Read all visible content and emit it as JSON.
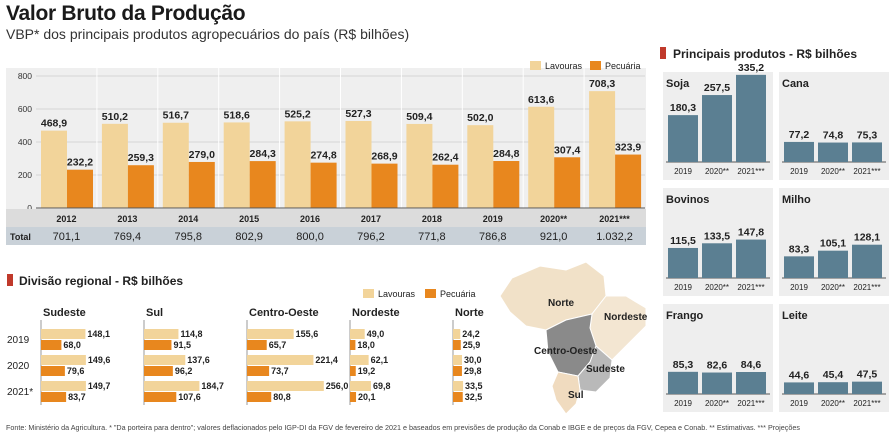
{
  "header": {
    "title": "Valor Bruto da Produção",
    "subtitle": "VBP* dos principais produtos agropecuários do país (R$ bilhões)"
  },
  "footer": {
    "text": "Fonte: Ministério da Agricultura. * \"Da porteira para dentro\"; valores deflacionados pelo IGP-DI da FGV de fevereiro de 2021 e baseados em previsões de produção da Conab e IBGE e de preços da FGV, Cepea e Conab. ** Estimativas. *** Projeções"
  },
  "colors": {
    "lavouras": "#f2d49a",
    "pecuaria": "#e8871e",
    "product_bar": "#5b7f92",
    "panel_bg": "#eeeeee",
    "total_row": "#c9d1d8",
    "section_marker": "#c0392b"
  },
  "chart_data": [
    {
      "type": "bar",
      "id": "main",
      "categories": [
        "2012",
        "2013",
        "2014",
        "2015",
        "2016",
        "2017",
        "2018",
        "2019",
        "2020**",
        "2021***"
      ],
      "ylim": [
        0,
        800
      ],
      "yticks": [
        "0",
        "200",
        "400",
        "600",
        "800"
      ],
      "series": [
        {
          "name": "Lavouras",
          "values": [
            468.9,
            510.2,
            516.7,
            518.6,
            525.2,
            527.3,
            509.4,
            502.0,
            613.6,
            708.3
          ],
          "labels": [
            "468,9",
            "510,2",
            "516,7",
            "518,6",
            "525,2",
            "527,3",
            "509,4",
            "502,0",
            "613,6",
            "708,3"
          ]
        },
        {
          "name": "Pecuária",
          "values": [
            232.2,
            259.3,
            279.0,
            284.3,
            274.8,
            268.9,
            262.4,
            284.8,
            307.4,
            323.9
          ],
          "labels": [
            "232,2",
            "259,3",
            "279,0",
            "284,3",
            "274,8",
            "268,9",
            "262,4",
            "284,8",
            "307,4",
            "323,9"
          ]
        }
      ],
      "total_label": "Total",
      "totals": [
        "701,1",
        "769,4",
        "795,8",
        "802,9",
        "800,0",
        "796,2",
        "771,8",
        "786,8",
        "921,0",
        "1.032,2"
      ],
      "grid": true,
      "legend": "top-right"
    },
    {
      "type": "bar",
      "id": "regional",
      "title": "Divisão regional - R$ bilhões",
      "orientation": "horizontal",
      "years": [
        "2019",
        "2020",
        "2021*"
      ],
      "legend": {
        "lavouras": "Lavouras",
        "pecuaria": "Pecuária"
      },
      "regions": [
        {
          "name": "Sudeste",
          "lavouras": [
            148.1,
            149.6,
            149.7
          ],
          "pecuaria": [
            68.0,
            79.6,
            83.7
          ],
          "lavouras_labels": [
            "148,1",
            "149,6",
            "149,7"
          ],
          "pecuaria_labels": [
            "68,0",
            "79,6",
            "83,7"
          ]
        },
        {
          "name": "Sul",
          "lavouras": [
            114.8,
            137.6,
            184.7
          ],
          "pecuaria": [
            91.5,
            96.2,
            107.6
          ],
          "lavouras_labels": [
            "114,8",
            "137,6",
            "184,7"
          ],
          "pecuaria_labels": [
            "91,5",
            "96,2",
            "107,6"
          ]
        },
        {
          "name": "Centro-Oeste",
          "lavouras": [
            155.6,
            221.4,
            256.0
          ],
          "pecuaria": [
            65.7,
            73.7,
            80.8
          ],
          "lavouras_labels": [
            "155,6",
            "221,4",
            "256,0"
          ],
          "pecuaria_labels": [
            "65,7",
            "73,7",
            "80,8"
          ]
        },
        {
          "name": "Nordeste",
          "lavouras": [
            49.0,
            62.1,
            69.8
          ],
          "pecuaria": [
            18.0,
            19.2,
            20.1
          ],
          "lavouras_labels": [
            "49,0",
            "62,1",
            "69,8"
          ],
          "pecuaria_labels": [
            "18,0",
            "19,2",
            "20,1"
          ]
        },
        {
          "name": "Norte",
          "lavouras": [
            24.2,
            30.0,
            33.5
          ],
          "pecuaria": [
            25.9,
            29.8,
            32.5
          ],
          "lavouras_labels": [
            "24,2",
            "30,0",
            "33,5"
          ],
          "pecuaria_labels": [
            "25,9",
            "29,8",
            "32,5"
          ]
        }
      ],
      "map_labels": [
        "Norte",
        "Nordeste",
        "Centro-Oeste",
        "Sudeste",
        "Sul"
      ]
    },
    {
      "type": "bar",
      "id": "products",
      "title": "Principais produtos - R$ bilhões",
      "categories": [
        "2019",
        "2020**",
        "2021***"
      ],
      "products": [
        {
          "name": "Soja",
          "values": [
            180.3,
            257.5,
            335.2
          ],
          "labels": [
            "180,3",
            "257,5",
            "335,2"
          ]
        },
        {
          "name": "Cana",
          "values": [
            77.2,
            74.8,
            75.3
          ],
          "labels": [
            "77,2",
            "74,8",
            "75,3"
          ]
        },
        {
          "name": "Bovinos",
          "values": [
            115.5,
            133.5,
            147.8
          ],
          "labels": [
            "115,5",
            "133,5",
            "147,8"
          ]
        },
        {
          "name": "Milho",
          "values": [
            83.3,
            105.1,
            128.1
          ],
          "labels": [
            "83,3",
            "105,1",
            "128,1"
          ]
        },
        {
          "name": "Frango",
          "values": [
            85.3,
            82.6,
            84.6
          ],
          "labels": [
            "85,3",
            "82,6",
            "84,6"
          ]
        },
        {
          "name": "Leite",
          "values": [
            44.6,
            45.4,
            47.5
          ],
          "labels": [
            "44,6",
            "45,4",
            "47,5"
          ]
        }
      ]
    }
  ]
}
